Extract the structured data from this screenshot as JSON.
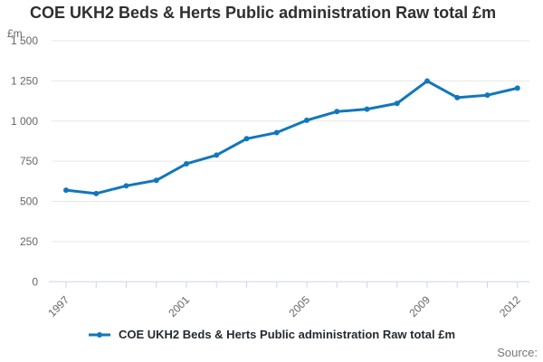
{
  "title": "COE UKH2 Beds & Herts Public administration Raw total £m",
  "y_axis_unit": "£m",
  "source_label": "Source:",
  "legend": {
    "label": "COE UKH2 Beds & Herts Public administration Raw total £m"
  },
  "colors": {
    "series": "#1177bc",
    "grid": "#e6e6e6",
    "axis": "#ccd6eb",
    "tick_label": "#666666",
    "title": "#2f2f2f",
    "legend_text": "#232a31",
    "source_text": "#777777"
  },
  "chart_data": {
    "type": "line",
    "title": "COE UKH2 Beds & Herts Public administration Raw total £m",
    "xlabel": "",
    "ylabel": "£m",
    "x": [
      1997,
      1998,
      1999,
      2000,
      2001,
      2002,
      2003,
      2004,
      2005,
      2006,
      2007,
      2008,
      2009,
      2010,
      2011,
      2012
    ],
    "series": [
      {
        "name": "COE UKH2 Beds & Herts Public administration Raw total £m",
        "values": [
          570,
          549,
          597,
          631,
          734,
          788,
          890,
          928,
          1005,
          1059,
          1074,
          1110,
          1249,
          1146,
          1161,
          1205
        ]
      }
    ],
    "ylim": [
      0,
      1500
    ],
    "y_ticks": [
      0,
      250,
      500,
      750,
      1000,
      1250,
      1500
    ],
    "y_tick_labels": [
      "0",
      "250",
      "500",
      "750",
      "1 000",
      "1 250",
      "1 500"
    ],
    "x_tick_values": [
      1997,
      2001,
      2005,
      2009,
      2012
    ],
    "grid": true,
    "legend_position": "bottom",
    "marker": "circle"
  }
}
